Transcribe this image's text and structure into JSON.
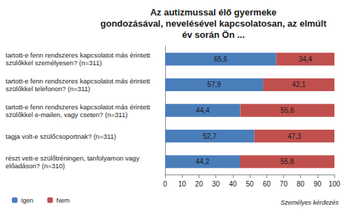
{
  "chart_data": {
    "type": "bar",
    "title": "Az autizmussal élő gyermeke\ngondozásával, nevelésével kapcsolatosan, az elmúlt\név során Ön ...",
    "orientation": "horizontal",
    "stacked": true,
    "data_labels": true,
    "grid": false,
    "legend": "lower left",
    "annotation": "Személyes kérdezés",
    "categories": [
      "tartott-e fenn rendszeres kapcsolatot más érintett szülőkkel személyesen? (n=311)",
      "tartott-e fenn rendszeres kapcsolatot más érintett szülőkkel telefonon? (n=311)",
      "tartott-e fenn rendszeres kapcsolatot más érintett szülőkkel e-mailen, vagy cseten? (n=311)",
      "tagja volt-e szülőcsoportnak? (n=311)",
      "részt vett-e szülőtréningen, tanfolyamon vagy előadáson? (n=310)"
    ],
    "series": [
      {
        "name": "Igen",
        "color": "#4a7ebb",
        "values": [
          65.6,
          57.9,
          44.4,
          52.7,
          44.2
        ],
        "value_labels": [
          "65,6",
          "57,9",
          "44,4",
          "52,7",
          "44,2"
        ]
      },
      {
        "name": "Nem",
        "color": "#c0504d",
        "values": [
          34.4,
          42.1,
          55.6,
          47.3,
          55.8
        ],
        "value_labels": [
          "34,4",
          "42,1",
          "55,6",
          "47,3",
          "55,8"
        ]
      }
    ],
    "xlim": [
      0,
      100
    ],
    "xticks": [
      0,
      10,
      20,
      30,
      40,
      50,
      60,
      70,
      80,
      90,
      100
    ]
  }
}
